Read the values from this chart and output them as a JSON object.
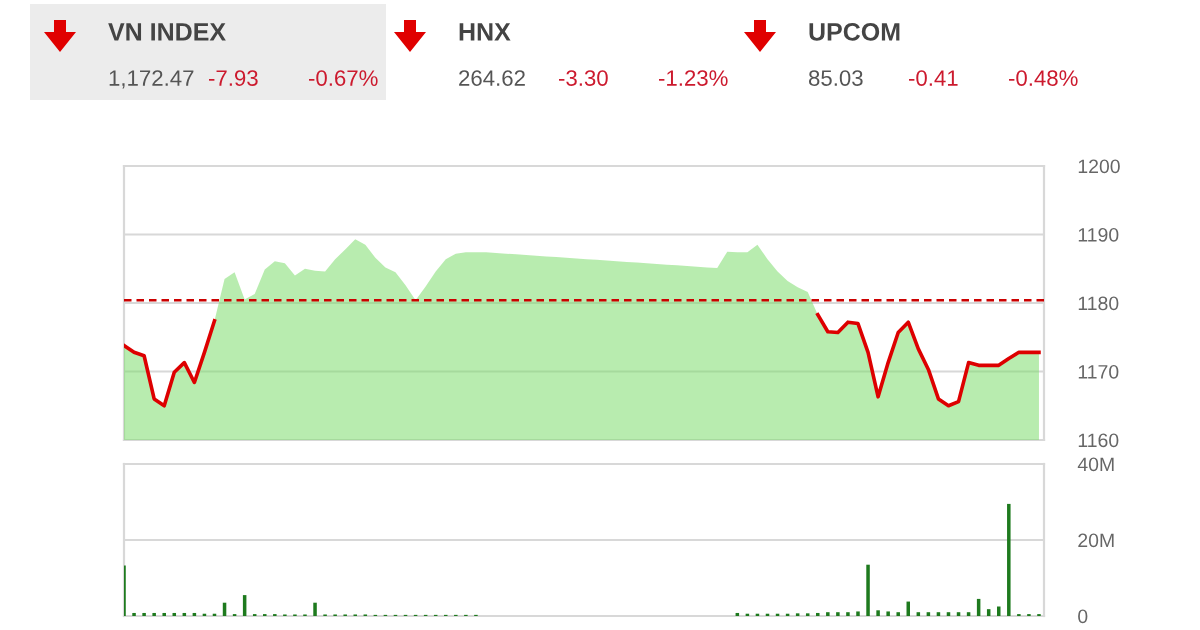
{
  "chart_data": [
    {
      "type": "other",
      "title": "VN INDEX",
      "annotations": [
        "1,172.47",
        "-7.93",
        "-0.67%"
      ]
    },
    {
      "type": "other",
      "title": "HNX",
      "annotations": [
        "264.62",
        "-3.30",
        "-1.23%"
      ]
    },
    {
      "type": "other",
      "title": "UPCOM",
      "annotations": [
        "85.03",
        "-0.41",
        "-0.48%"
      ]
    },
    {
      "type": "area",
      "categories": [
        null,
        null,
        null,
        null,
        null,
        null,
        null,
        null,
        null,
        null,
        null,
        null,
        null,
        null,
        null,
        null,
        null,
        null,
        null,
        null,
        null,
        null,
        null,
        null,
        null,
        null,
        null,
        null,
        null,
        null,
        null,
        null,
        null,
        null,
        null,
        null,
        null,
        null,
        null,
        null,
        null,
        null,
        null,
        null,
        null,
        null,
        null,
        null,
        null,
        null,
        null,
        null,
        null,
        null,
        null,
        null,
        null,
        null,
        null,
        null,
        null,
        null,
        null,
        null,
        null,
        null,
        null,
        null,
        null,
        null,
        null,
        null,
        null,
        null,
        null,
        null,
        null,
        null,
        null,
        null,
        null,
        null,
        null,
        null,
        null,
        null,
        null,
        null,
        null,
        null,
        null,
        null
      ],
      "series": [
        {
          "type": "area",
          "color": "#7ddc6e",
          "values": [
            1173.8,
            1172.8,
            1172.3,
            1166.0,
            1165.0,
            1169.9,
            1171.3,
            1168.4,
            1172.8,
            1177.4,
            1183.5,
            1184.5,
            1180.5,
            1181.3,
            1184.9,
            1186.1,
            1185.8,
            1184.0,
            1185.0,
            1184.7,
            1184.6,
            1186.4,
            1187.8,
            1189.3,
            1188.5,
            1186.6,
            1185.2,
            1184.5,
            1182.6,
            1180.4,
            1182.4,
            1184.6,
            1186.4,
            1187.2,
            1187.4,
            1187.4,
            1187.4,
            1187.3,
            1187.2,
            1187.1,
            1187.0,
            1186.9,
            1186.8,
            1186.7,
            1186.6,
            1186.5,
            1186.4,
            1186.3,
            1186.2,
            1186.1,
            1186.0,
            1185.9,
            1185.8,
            1185.7,
            1185.6,
            1185.5,
            1185.4,
            1185.3,
            1185.2,
            1185.1,
            1187.5,
            1187.4,
            1187.4,
            1188.5,
            1186.4,
            1184.6,
            1183.2,
            1182.3,
            1181.6,
            1178.3,
            1175.8,
            1175.7,
            1177.2,
            1177.0,
            1172.8,
            1166.3,
            1171.3,
            1175.7,
            1177.2,
            1173.3,
            1170.3,
            1166.0,
            1165.0,
            1165.6,
            1171.3,
            1170.9,
            1170.9,
            1170.9,
            1171.9,
            1172.8,
            1172.8,
            1172.8
          ]
        },
        {
          "type": "line",
          "color": "#dd0000",
          "values": [
            1173.8,
            1172.8,
            1172.3,
            1166.0,
            1165.0,
            1169.9,
            1171.3,
            1168.4,
            1172.8,
            1177.4,
            null,
            null,
            null,
            null,
            null,
            null,
            null,
            null,
            null,
            null,
            null,
            null,
            null,
            null,
            null,
            null,
            null,
            null,
            null,
            null,
            null,
            null,
            null,
            null,
            null,
            null,
            null,
            null,
            null,
            null,
            null,
            null,
            null,
            null,
            null,
            null,
            null,
            null,
            null,
            null,
            null,
            null,
            null,
            null,
            null,
            null,
            null,
            null,
            null,
            null,
            null,
            null,
            null,
            null,
            null,
            null,
            null,
            null,
            null,
            1178.3,
            1175.8,
            1175.7,
            1177.2,
            1177.0,
            1172.8,
            1166.3,
            1171.3,
            1175.7,
            1177.2,
            1173.3,
            1170.3,
            1166.0,
            1165.0,
            1165.6,
            1171.3,
            1170.9,
            1170.9,
            1170.9,
            1171.9,
            1172.8,
            1172.8,
            1172.8
          ]
        }
      ],
      "ylim": [
        1160,
        1200
      ],
      "yticks": [
        1160,
        1170,
        1180,
        1190,
        1200
      ],
      "grid": "y",
      "tick_labels": "y",
      "ref_lines": [
        {
          "axis": "y",
          "value": 1180.4,
          "color": "#cc0000",
          "line_style": "dashed"
        }
      ]
    },
    {
      "type": "bar",
      "categories": [
        null,
        null,
        null,
        null,
        null,
        null,
        null,
        null,
        null,
        null,
        null,
        null,
        null,
        null,
        null,
        null,
        null,
        null,
        null,
        null,
        null,
        null,
        null,
        null,
        null,
        null,
        null,
        null,
        null,
        null,
        null,
        null,
        null,
        null,
        null,
        null,
        null,
        null,
        null,
        null,
        null,
        null,
        null,
        null,
        null,
        null,
        null,
        null,
        null,
        null,
        null,
        null,
        null,
        null,
        null,
        null,
        null,
        null,
        null,
        null,
        null,
        null,
        null,
        null,
        null,
        null,
        null,
        null,
        null,
        null,
        null,
        null,
        null,
        null,
        null,
        null,
        null,
        null,
        null,
        null,
        null,
        null,
        null,
        null,
        null,
        null,
        null,
        null,
        null,
        null,
        null,
        null
      ],
      "series": [
        {
          "color": "#1e7a1e",
          "values": [
            13.3,
            0.8,
            0.8,
            0.8,
            0.8,
            0.8,
            0.8,
            0.8,
            0.6,
            0.6,
            3.5,
            0.5,
            5.5,
            0.5,
            0.5,
            0.5,
            0.4,
            0.4,
            0.4,
            3.5,
            0.4,
            0.4,
            0.4,
            0.4,
            0.4,
            0.3,
            0.3,
            0.3,
            0.3,
            0.3,
            0.3,
            0.3,
            0.3,
            0.3,
            0.3,
            0.3,
            0,
            0,
            0,
            0,
            0,
            0,
            0,
            0,
            0,
            0,
            0,
            0,
            0,
            0,
            0,
            0,
            0,
            0,
            0,
            0,
            0,
            0,
            0,
            0,
            0,
            0.8,
            0.6,
            0.6,
            0.6,
            0.6,
            0.6,
            0.7,
            0.7,
            0.8,
            1.0,
            1.0,
            1.0,
            1.2,
            13.5,
            1.5,
            1.2,
            1.0,
            3.8,
            1.0,
            1.0,
            1.0,
            1.0,
            1.0,
            1.0,
            4.5,
            1.8,
            2.5,
            29.5,
            0.5,
            0.5,
            0.5
          ]
        }
      ],
      "ylim": [
        0,
        40
      ],
      "yticks": [
        0,
        {
          "value": 20,
          "label": "20M"
        },
        {
          "value": 40,
          "label": "40M"
        }
      ],
      "grid": "y",
      "tick_labels": "y"
    }
  ]
}
